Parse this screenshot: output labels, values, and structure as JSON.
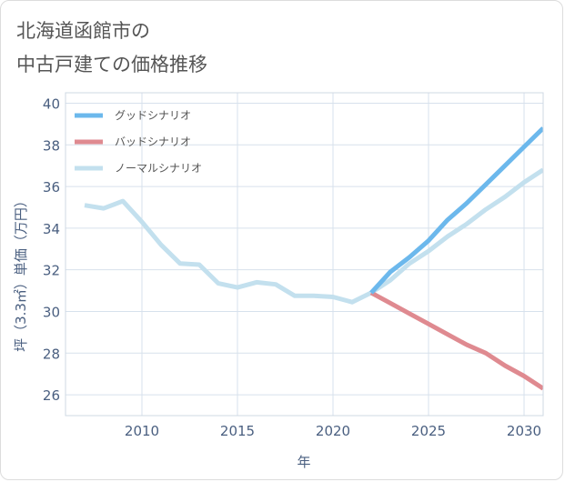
{
  "title_lines": [
    "北海道函館市の",
    "中古戸建ての価格推移"
  ],
  "chart_data": {
    "type": "line",
    "xlabel": "年",
    "ylabel": "坪（3.3㎡）単価（万円）",
    "xlim": [
      2006,
      2031
    ],
    "ylim": [
      25,
      40.5
    ],
    "x_ticks": [
      2010,
      2015,
      2020,
      2025,
      2030
    ],
    "y_ticks": [
      26,
      28,
      30,
      32,
      34,
      36,
      38,
      40
    ],
    "grid": true,
    "legend_position": "top-left",
    "series": [
      {
        "name": "グッドシナリオ",
        "color": "#6cb8ec",
        "x": [
          2022,
          2023,
          2024,
          2025,
          2026,
          2027,
          2028,
          2029,
          2030,
          2031
        ],
        "values": [
          30.9,
          31.9,
          32.6,
          33.4,
          34.4,
          35.2,
          36.1,
          37.0,
          37.9,
          38.8
        ]
      },
      {
        "name": "バッドシナリオ",
        "color": "#df8a90",
        "x": [
          2022,
          2023,
          2024,
          2025,
          2026,
          2027,
          2028,
          2029,
          2030,
          2031
        ],
        "values": [
          30.9,
          30.4,
          29.9,
          29.4,
          28.9,
          28.4,
          28.0,
          27.4,
          26.9,
          26.3
        ]
      },
      {
        "name": "ノーマルシナリオ",
        "color": "#c3e0ee",
        "x": [
          2007,
          2008,
          2009,
          2010,
          2011,
          2012,
          2013,
          2014,
          2015,
          2016,
          2017,
          2018,
          2019,
          2020,
          2021,
          2022,
          2023,
          2024,
          2025,
          2026,
          2027,
          2028,
          2029,
          2030,
          2031
        ],
        "values": [
          35.1,
          34.95,
          35.3,
          34.3,
          33.2,
          32.3,
          32.25,
          31.35,
          31.15,
          31.4,
          31.3,
          30.75,
          30.75,
          30.7,
          30.45,
          30.9,
          31.5,
          32.3,
          32.9,
          33.6,
          34.2,
          34.9,
          35.5,
          36.2,
          36.8
        ]
      }
    ]
  }
}
